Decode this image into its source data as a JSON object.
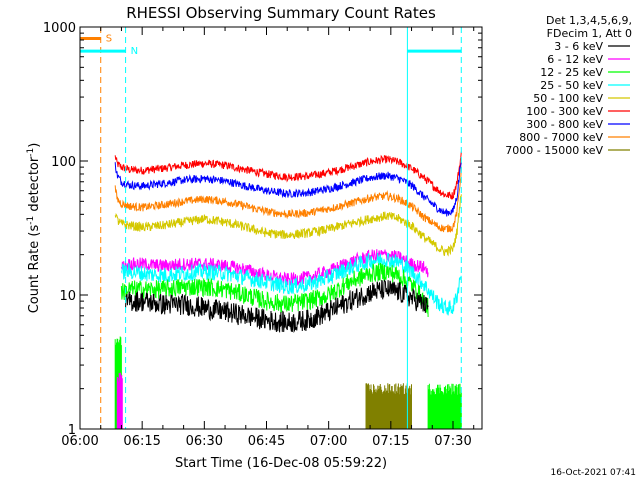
{
  "chart_data": {
    "type": "line",
    "title": "RHESSI Observing Summary Count Rates",
    "xlabel": "Start Time (16-Dec-08 05:59:22)",
    "ylabel_main": "Count Rate (s",
    "ylabel_sup1": "-1",
    "ylabel_mid": " detector",
    "ylabel_sup2": "-1",
    "ylabel_end": ")",
    "y_scale": "log",
    "ylim": [
      1,
      1000
    ],
    "xlim_minutes": [
      0,
      97
    ],
    "x_tick_minutes": [
      0,
      15,
      30,
      45,
      60,
      75,
      90
    ],
    "x_tick_labels": [
      "06:00",
      "06:15",
      "06:30",
      "06:45",
      "07:00",
      "07:15",
      "07:30"
    ],
    "y_ticks": [
      1,
      10,
      100,
      1000
    ],
    "y_tick_labels": [
      "1",
      "10",
      "100",
      "1000"
    ],
    "legend": {
      "placement": "right",
      "header": [
        "Det 1,3,4,5,6,9,",
        "FDecim 1, Att 0"
      ],
      "entries": [
        {
          "label": "3 - 6 keV",
          "color": "#000000"
        },
        {
          "label": "6 - 12 keV",
          "color": "#ff00ff"
        },
        {
          "label": "12 - 25 keV",
          "color": "#00ff00"
        },
        {
          "label": "25 - 50 keV",
          "color": "#00ffff"
        },
        {
          "label": "50 - 100 keV",
          "color": "#d4c800"
        },
        {
          "label": "100 - 300 keV",
          "color": "#ff0000"
        },
        {
          "label": "300 - 800 keV",
          "color": "#0000ff"
        },
        {
          "label": "800 - 7000 keV",
          "color": "#ff8000"
        },
        {
          "label": "7000 - 15000 keV",
          "color": "#808000"
        }
      ]
    },
    "flags": [
      {
        "label": "S",
        "color": "#ff8000",
        "x_range": [
          0,
          5
        ],
        "level": 820,
        "marker_x": 5
      },
      {
        "label": "N",
        "color": "#00ffff",
        "x_range": [
          0,
          11
        ],
        "level": 660,
        "marker_x": 11
      },
      {
        "label": "",
        "color": "#00ffff",
        "x_range": [
          79,
          92
        ],
        "level": 660,
        "marker_x": 79
      }
    ],
    "vlines": [
      {
        "x": 0,
        "color": "#00ffff",
        "style": "solid"
      },
      {
        "x": 5,
        "color": "#ff8000",
        "style": "dashed"
      },
      {
        "x": 11,
        "color": "#00ffff",
        "style": "dashed"
      },
      {
        "x": 79,
        "color": "#00ffff",
        "style": "solid"
      },
      {
        "x": 92,
        "color": "#00ffff",
        "style": "dashed"
      }
    ],
    "series": [
      {
        "name": "100 - 300 keV",
        "color": "#ff0000",
        "noise": 0.03,
        "x": [
          8.5,
          9,
          10,
          12,
          15,
          20,
          25,
          30,
          35,
          40,
          45,
          50,
          55,
          60,
          65,
          70,
          74,
          77,
          80,
          83,
          86,
          88,
          90,
          91,
          92
        ],
        "y": [
          108,
          95,
          90,
          86,
          85,
          88,
          93,
          96,
          93,
          86,
          80,
          76,
          77,
          82,
          90,
          99,
          103,
          98,
          88,
          75,
          62,
          56,
          55,
          70,
          112
        ]
      },
      {
        "name": "300 - 800 keV",
        "color": "#0000ff",
        "noise": 0.03,
        "x": [
          8.5,
          9,
          10,
          12,
          15,
          20,
          25,
          30,
          35,
          40,
          45,
          50,
          55,
          60,
          65,
          70,
          74,
          77,
          80,
          83,
          86,
          88,
          90,
          91,
          92
        ],
        "y": [
          95,
          78,
          70,
          66,
          65,
          68,
          72,
          74,
          71,
          65,
          60,
          57,
          58,
          62,
          68,
          75,
          78,
          74,
          66,
          54,
          45,
          41,
          42,
          55,
          105
        ]
      },
      {
        "name": "800 - 7000 keV",
        "color": "#ff8000",
        "noise": 0.03,
        "x": [
          8.5,
          9,
          10,
          12,
          15,
          20,
          25,
          30,
          35,
          40,
          45,
          50,
          55,
          60,
          65,
          70,
          74,
          77,
          80,
          83,
          86,
          88,
          90,
          91,
          92
        ],
        "y": [
          62,
          52,
          48,
          46,
          45,
          47,
          50,
          52,
          50,
          46,
          42,
          40,
          41,
          44,
          48,
          53,
          55,
          52,
          46,
          38,
          33,
          31,
          32,
          42,
          85
        ]
      },
      {
        "name": "50 - 100 keV",
        "color": "#d4c800",
        "noise": 0.035,
        "x": [
          8.5,
          9,
          10,
          12,
          15,
          20,
          25,
          30,
          35,
          40,
          45,
          50,
          55,
          60,
          65,
          70,
          74,
          77,
          80,
          83,
          86,
          88,
          90,
          91,
          92
        ],
        "y": [
          42,
          36,
          34,
          33,
          32,
          33,
          35,
          37,
          35,
          32,
          29,
          28,
          29,
          31,
          34,
          37,
          39,
          37,
          33,
          27,
          23,
          21,
          22,
          30,
          60
        ]
      },
      {
        "name": "6 - 12 keV",
        "color": "#ff00ff",
        "noise": 0.05,
        "x": [
          10,
          12,
          15,
          20,
          25,
          30,
          35,
          40,
          45,
          50,
          55,
          60,
          65,
          70,
          74,
          77,
          80,
          83,
          84
        ],
        "y": [
          16,
          17,
          17,
          16.5,
          17,
          17,
          16.5,
          15.5,
          14,
          13,
          13.5,
          15,
          17.5,
          19.5,
          20,
          19,
          17,
          16,
          15
        ]
      },
      {
        "name": "25 - 50 keV",
        "color": "#00ffff",
        "noise": 0.06,
        "x": [
          10,
          12,
          15,
          20,
          25,
          30,
          35,
          40,
          45,
          50,
          55,
          60,
          65,
          70,
          74,
          77,
          80,
          83,
          86,
          88,
          90,
          91,
          92
        ],
        "y": [
          15,
          15,
          14.5,
          14,
          14.5,
          15,
          14.5,
          13.5,
          12.5,
          11.5,
          12,
          13.5,
          16,
          18,
          18.5,
          17.5,
          15,
          12,
          9,
          8,
          8,
          10,
          15
        ]
      },
      {
        "name": "12 - 25 keV",
        "color": "#00ff00",
        "noise": 0.07,
        "x": [
          10,
          12,
          15,
          20,
          25,
          30,
          35,
          40,
          45,
          50,
          55,
          60,
          65,
          70,
          74,
          77,
          80,
          82,
          84
        ],
        "y": [
          10.5,
          11,
          11,
          11,
          11.5,
          11.5,
          11,
          10,
          9,
          8.5,
          9,
          10,
          12.5,
          14.5,
          15,
          14,
          12,
          10,
          8
        ]
      },
      {
        "name": "3 - 6 keV",
        "color": "#000000",
        "noise": 0.08,
        "x": [
          11,
          12,
          15,
          20,
          25,
          30,
          35,
          40,
          45,
          50,
          55,
          60,
          65,
          70,
          74,
          77,
          80,
          83,
          84
        ],
        "y": [
          8.5,
          9,
          9,
          8.5,
          8.5,
          8,
          7.5,
          7,
          6.5,
          6.2,
          6.5,
          7.5,
          9,
          10.5,
          11,
          10.5,
          9.5,
          8.5,
          8
        ]
      }
    ],
    "low_segments": [
      {
        "name": "12 - 25 keV",
        "color": "#00ff00",
        "x_range": [
          8.5,
          10
        ],
        "y": 4.5
      },
      {
        "name": "6 - 12 keV",
        "color": "#ff00ff",
        "x_range": [
          9,
          10.2
        ],
        "y": 2.5
      },
      {
        "name": "7000 - 15000 keV",
        "color": "#808000",
        "x_range": [
          69,
          80
        ],
        "y": 2
      },
      {
        "name": "12 - 25 keV",
        "color": "#00ff00",
        "x_range": [
          84,
          92
        ],
        "y": 2
      }
    ],
    "grid": false
  },
  "footer": {
    "timestamp": "16-Oct-2021 07:41"
  }
}
